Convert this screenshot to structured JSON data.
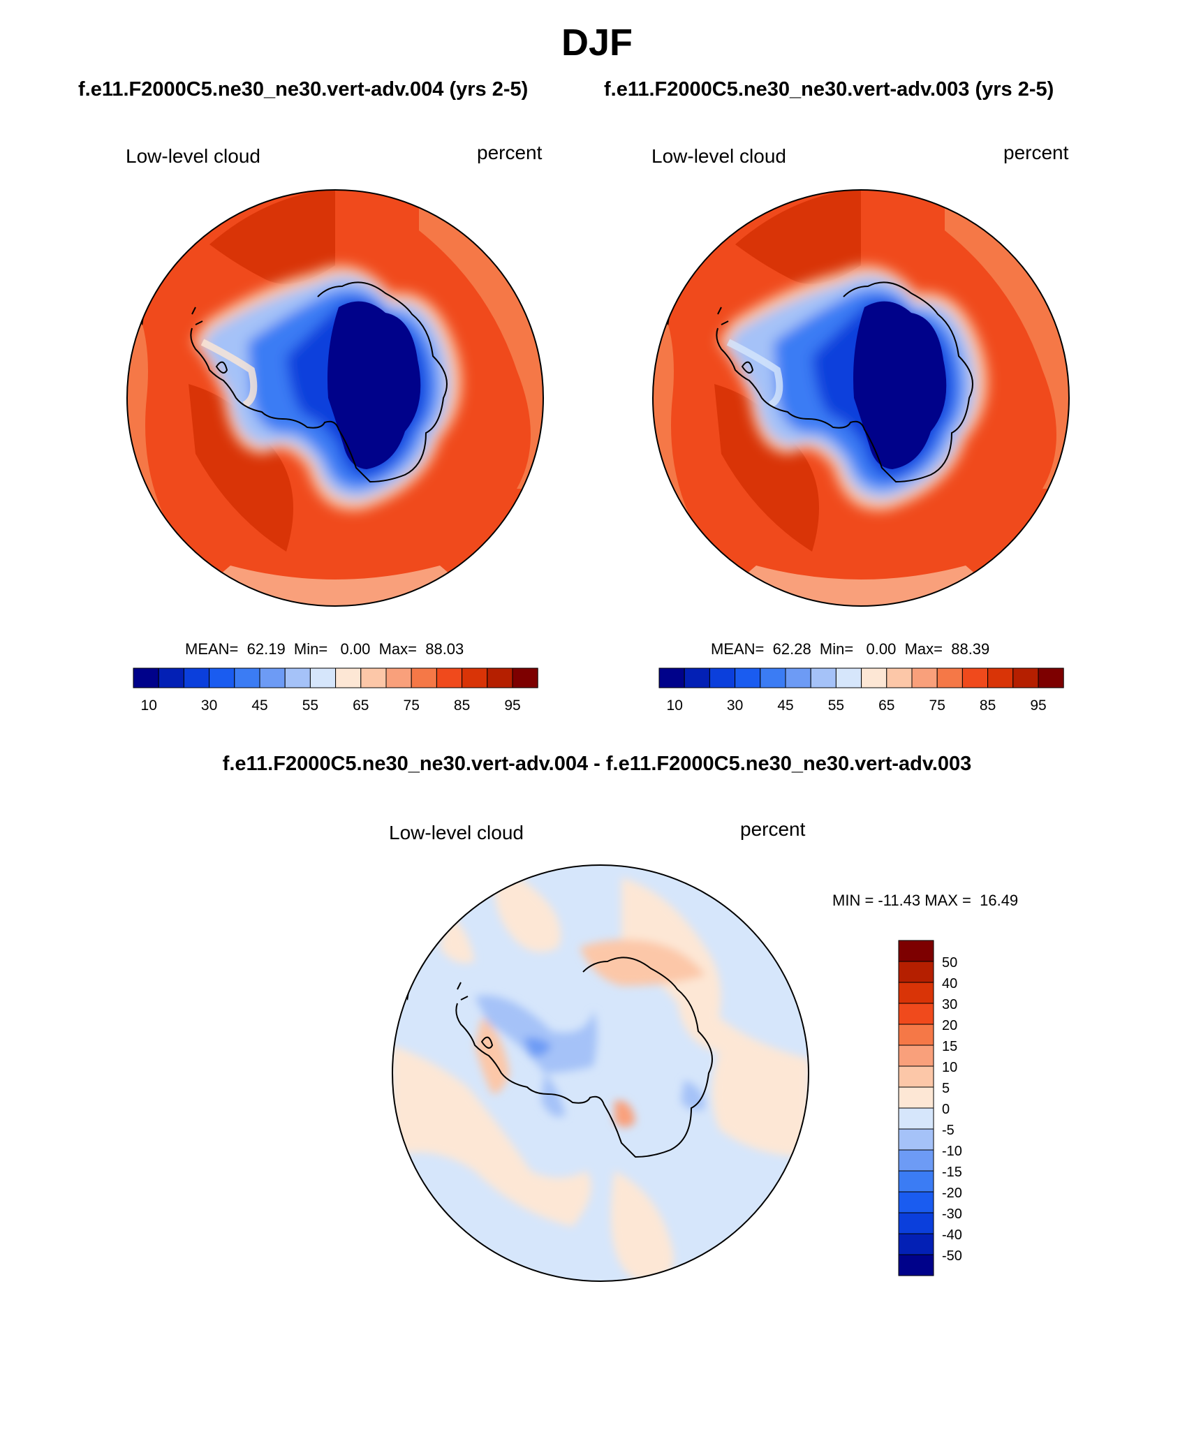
{
  "figure": {
    "title": "DJF",
    "left_case": "f.e11.F2000C5.ne30_ne30.vert-adv.004 (yrs 2-5)",
    "right_case": "f.e11.F2000C5.ne30_ne30.vert-adv.003 (yrs 2-5)",
    "diff_title": "f.e11.F2000C5.ne30_ne30.vert-adv.004 - f.e11.F2000C5.ne30_ne30.vert-adv.003"
  },
  "panels": {
    "left": {
      "variable": "Low-level cloud",
      "units": "percent",
      "stats": "MEAN=  62.19  Min=   0.00  Max=  88.03"
    },
    "right": {
      "variable": "Low-level cloud",
      "units": "percent",
      "stats": "MEAN=  62.28  Min=   0.00  Max=  88.39"
    },
    "diff": {
      "variable": "Low-level cloud",
      "units": "percent",
      "stats": "MIN = -11.43 MAX =  16.49"
    }
  },
  "colorbars": {
    "absolute": {
      "colors": [
        "#00028a",
        "#0320b5",
        "#0b3fdc",
        "#1a5cf0",
        "#3b7cf4",
        "#6d9bf5",
        "#a5c2f8",
        "#d6e6fb",
        "#fde7d5",
        "#fcc7a8",
        "#f9a07b",
        "#f57847",
        "#f04a1c",
        "#d93407",
        "#b51f00",
        "#7d0000"
      ],
      "labels": [
        "10",
        "30",
        "45",
        "55",
        "65",
        "75",
        "85",
        "95"
      ]
    },
    "difference": {
      "colors": [
        "#7d0000",
        "#b51f00",
        "#d93407",
        "#f04a1c",
        "#f57847",
        "#f9a07b",
        "#fcc7a8",
        "#fde7d5",
        "#d6e6fb",
        "#a5c2f8",
        "#6d9bf5",
        "#3b7cf4",
        "#1a5cf0",
        "#0b3fdc",
        "#0320b5",
        "#00028a"
      ],
      "labels": [
        "50",
        "40",
        "30",
        "20",
        "15",
        "10",
        "5",
        "0",
        "-5",
        "-10",
        "-15",
        "-20",
        "-30",
        "-40",
        "-50"
      ]
    }
  }
}
